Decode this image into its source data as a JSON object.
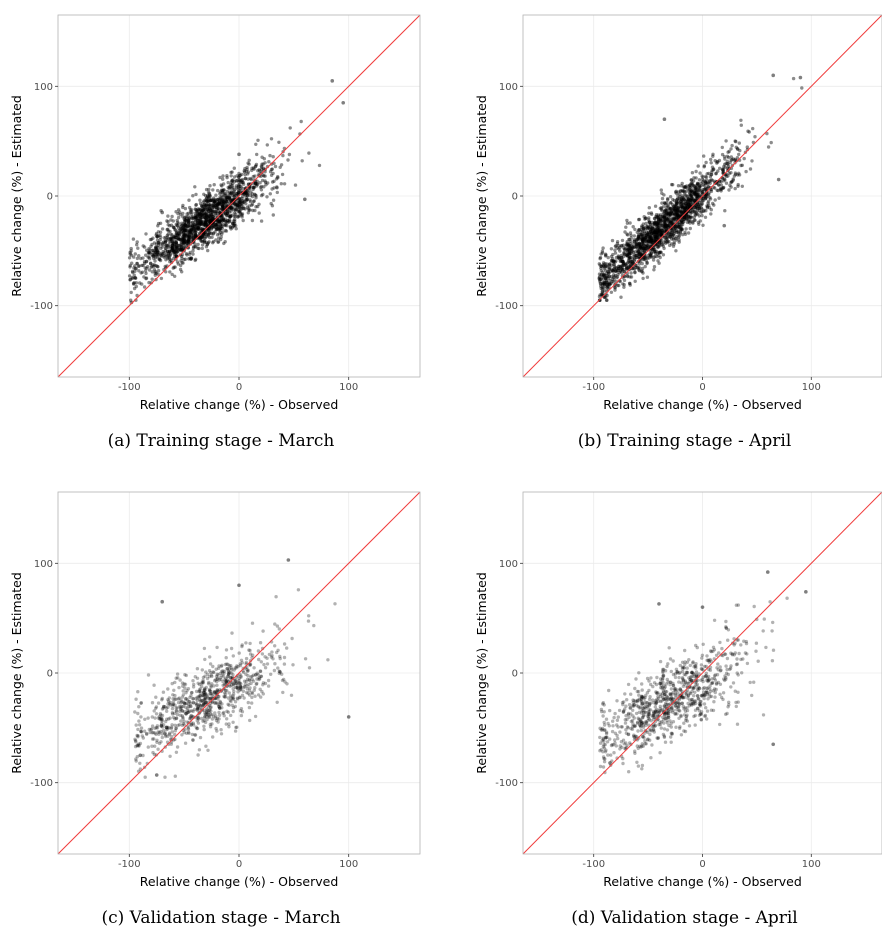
{
  "style": {
    "point_color": "#000000",
    "diagonal_color": "#f03c3c",
    "grid_color": "#ebebeb",
    "frame_color": "#b3b3b3"
  },
  "chart_data": [
    {
      "type": "scatter",
      "caption": "(a) Training stage - March",
      "xlabel": "Relative change (%) - Observed",
      "ylabel": "Relative change (%) - Estimated",
      "xlim": [
        -165,
        165
      ],
      "ylim": [
        -165,
        165
      ],
      "ticks": [
        -100,
        0,
        100
      ],
      "grid": true,
      "reference_line": "y = x",
      "point_cloud": {
        "n": 1600,
        "slope": 0.7,
        "intercept": -1,
        "spread": 12,
        "x_range": [
          -100,
          100
        ],
        "x_center": -30,
        "x_sd": 32,
        "alpha": 0.45
      },
      "notable_points": [
        {
          "x": 85,
          "y": 105
        },
        {
          "x": -70,
          "y": -15
        },
        {
          "x": 95,
          "y": 85
        },
        {
          "x": -98,
          "y": -97
        },
        {
          "x": 60,
          "y": -3
        },
        {
          "x": 0,
          "y": 38
        }
      ]
    },
    {
      "type": "scatter",
      "caption": "(b) Training stage - April",
      "xlabel": "Relative change (%) - Observed",
      "ylabel": "Relative change (%) - Estimated",
      "xlim": [
        -165,
        165
      ],
      "ylim": [
        -165,
        165
      ],
      "ticks": [
        -100,
        0,
        100
      ],
      "grid": true,
      "reference_line": "y = x",
      "point_cloud": {
        "n": 1700,
        "slope": 0.85,
        "intercept": 2,
        "spread": 11,
        "x_range": [
          -95,
          100
        ],
        "x_center": -35,
        "x_sd": 33,
        "alpha": 0.45
      },
      "notable_points": [
        {
          "x": 65,
          "y": 110
        },
        {
          "x": 90,
          "y": 108
        },
        {
          "x": -35,
          "y": 70
        },
        {
          "x": -90,
          "y": -92
        },
        {
          "x": 70,
          "y": 15
        },
        {
          "x": 20,
          "y": -27
        }
      ]
    },
    {
      "type": "scatter",
      "caption": "(c) Validation stage - March",
      "xlabel": "Relative change (%) - Observed",
      "ylabel": "Relative change (%) - Estimated",
      "xlim": [
        -165,
        165
      ],
      "ylim": [
        -165,
        165
      ],
      "ticks": [
        -100,
        0,
        100
      ],
      "grid": true,
      "reference_line": "y = x",
      "point_cloud": {
        "n": 850,
        "slope": 0.55,
        "intercept": -8,
        "spread": 16,
        "x_range": [
          -95,
          100
        ],
        "x_center": -30,
        "x_sd": 35,
        "alpha": 0.3
      },
      "notable_points": [
        {
          "x": 45,
          "y": 103
        },
        {
          "x": -70,
          "y": 65
        },
        {
          "x": 0,
          "y": 80
        },
        {
          "x": 100,
          "y": -40
        },
        {
          "x": -90,
          "y": -75
        },
        {
          "x": -75,
          "y": -93
        }
      ]
    },
    {
      "type": "scatter",
      "caption": "(d) Validation stage - April",
      "xlabel": "Relative change (%) - Observed",
      "ylabel": "Relative change (%) - Estimated",
      "xlim": [
        -165,
        165
      ],
      "ylim": [
        -165,
        165
      ],
      "ticks": [
        -100,
        0,
        100
      ],
      "grid": true,
      "reference_line": "y = x",
      "point_cloud": {
        "n": 900,
        "slope": 0.55,
        "intercept": -10,
        "spread": 17,
        "x_range": [
          -95,
          100
        ],
        "x_center": -30,
        "x_sd": 35,
        "alpha": 0.3
      },
      "notable_points": [
        {
          "x": 60,
          "y": 92
        },
        {
          "x": -40,
          "y": 63
        },
        {
          "x": 95,
          "y": 74
        },
        {
          "x": 65,
          "y": -65
        },
        {
          "x": -85,
          "y": -82
        },
        {
          "x": 0,
          "y": 60
        }
      ]
    }
  ]
}
